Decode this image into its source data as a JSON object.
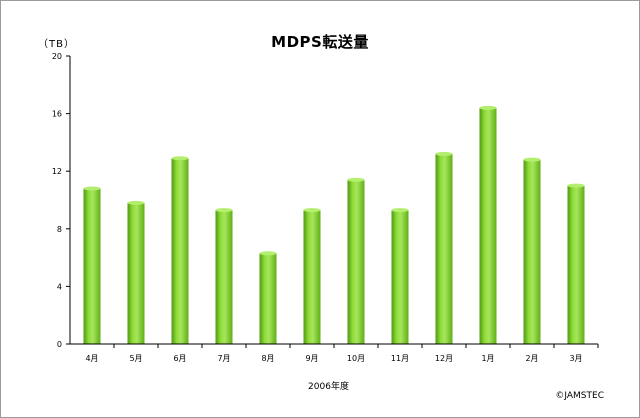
{
  "chart_data": {
    "type": "bar",
    "title": "MDPS転送量",
    "ylabel": "（TB）",
    "xlabel": "2006年度",
    "categories": [
      "4月",
      "5月",
      "6月",
      "7月",
      "8月",
      "9月",
      "10月",
      "11月",
      "12月",
      "1月",
      "2月",
      "3月"
    ],
    "values": [
      10.8,
      9.8,
      12.9,
      9.3,
      6.3,
      9.3,
      11.4,
      9.3,
      13.2,
      16.4,
      12.8,
      11.0
    ],
    "ylim": [
      0,
      20
    ],
    "yticks": [
      0,
      4,
      8,
      12,
      16,
      20
    ],
    "grid": false,
    "legend": "none",
    "colors": {
      "bar_light": "#a6e65a",
      "bar_main": "#7ccf25",
      "bar_dark": "#4f9a10",
      "axis": "#000000",
      "frame": "#9a9a9a"
    },
    "credit": "©JAMSTEC"
  }
}
